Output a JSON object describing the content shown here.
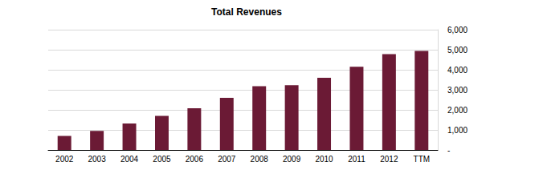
{
  "chart_data": {
    "type": "bar",
    "title": "Total Revenues",
    "categories": [
      "2002",
      "2003",
      "2004",
      "2005",
      "2006",
      "2007",
      "2008",
      "2009",
      "2010",
      "2011",
      "2012",
      "TTM"
    ],
    "values": [
      700,
      950,
      1320,
      1700,
      2080,
      2600,
      3180,
      3230,
      3600,
      4150,
      4780,
      4940
    ],
    "color": "#6b1a35",
    "ylim": [
      0,
      6000
    ],
    "yticks": [
      {
        "value": 0,
        "label": "-"
      },
      {
        "value": 1000,
        "label": "1,000"
      },
      {
        "value": 2000,
        "label": "2,000"
      },
      {
        "value": 3000,
        "label": "3,000"
      },
      {
        "value": 4000,
        "label": "4,000"
      },
      {
        "value": 5000,
        "label": "5,000"
      },
      {
        "value": 6000,
        "label": "6,000"
      }
    ],
    "grid": true
  }
}
